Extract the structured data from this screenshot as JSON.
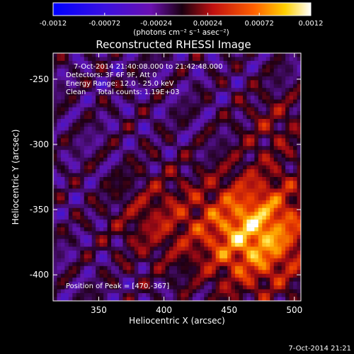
{
  "chart_data": {
    "type": "heatmap",
    "title": "Reconstructed RHESSI Image",
    "info_lines": [
      "7-Oct-2014 21:40:08.000 to 21:42:48.000",
      "Detectors: 3F 6F 9F, Att 0",
      "Energy Range: 12.0 - 25.0 keV",
      "Clean     Total counts: 1.19E+03"
    ],
    "peak_label": "Position of Peak = [470,-367]",
    "xlabel": "Heliocentric X (arcsec)",
    "ylabel": "Heliocentric Y (arcsec)",
    "xlim": [
      315,
      505
    ],
    "ylim": [
      -420,
      -230
    ],
    "xticks": [
      "350",
      "400",
      "450",
      "500"
    ],
    "xtick_values": [
      350,
      400,
      450,
      500
    ],
    "yticks": [
      "-250",
      "-300",
      "-350",
      "-400"
    ],
    "ytick_values": [
      -250,
      -300,
      -350,
      -400
    ],
    "peak": [
      470,
      -367
    ],
    "colorbar": {
      "range": [
        -0.0012,
        0.0012
      ],
      "tick_labels": [
        "-0.0012",
        "-0.00072",
        "-0.00024",
        "0.00024",
        "0.00072",
        "0.0012"
      ],
      "tick_values": [
        -0.0012,
        -0.00072,
        -0.00024,
        0.00024,
        0.00072,
        0.0012
      ],
      "units_label": "(photons cm⁻² s⁻¹ asec⁻²)"
    },
    "colors": {
      "negative_low": "#0000ff",
      "negative_mid": "#5a00c0",
      "zero": "#2a0020",
      "positive_mid": "#e03000",
      "positive_high": "#ffffff"
    }
  },
  "footer_timestamp": "7-Oct-2014 21:21"
}
